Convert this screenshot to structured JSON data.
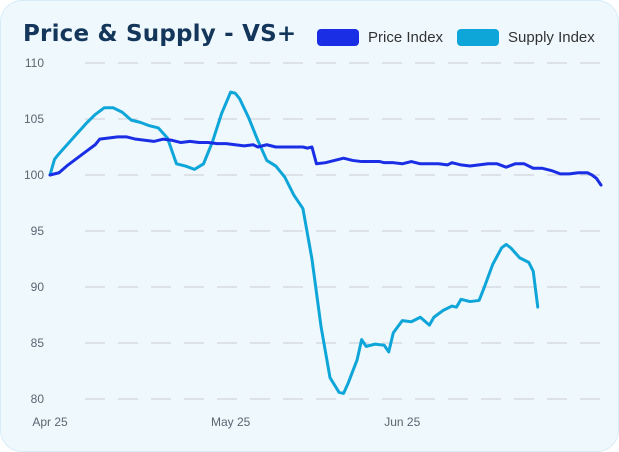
{
  "chart_data": {
    "type": "line",
    "title": "Price & Supply - VS+",
    "xlabel": "",
    "ylabel": "",
    "ylim": [
      80,
      110
    ],
    "y_ticks": [
      110,
      105,
      100,
      95,
      90,
      85,
      80
    ],
    "x_ticks": [
      "Apr 25",
      "May 25",
      "Jun 25"
    ],
    "grid": "horizontal dashed",
    "legend_position": "top-right",
    "colors": {
      "price": "#1a2ee6",
      "supply": "#0ea5d9",
      "grid": "#c9cdd2"
    },
    "series": [
      {
        "name": "Price Index",
        "color": "#1a2ee6",
        "points": [
          [
            0,
            100.0
          ],
          [
            2,
            100.2
          ],
          [
            4,
            100.9
          ],
          [
            6,
            101.5
          ],
          [
            8,
            102.1
          ],
          [
            10,
            102.7
          ],
          [
            11,
            103.2
          ],
          [
            13,
            103.3
          ],
          [
            15,
            103.4
          ],
          [
            17,
            103.4
          ],
          [
            19,
            103.2
          ],
          [
            21,
            103.1
          ],
          [
            23,
            103.0
          ],
          [
            25,
            103.2
          ],
          [
            27,
            103.1
          ],
          [
            29,
            102.9
          ],
          [
            31,
            103.0
          ],
          [
            33,
            102.9
          ],
          [
            35,
            102.9
          ],
          [
            37,
            102.8
          ],
          [
            39,
            102.8
          ],
          [
            41,
            102.7
          ],
          [
            43,
            102.6
          ],
          [
            45,
            102.7
          ],
          [
            46,
            102.5
          ],
          [
            48,
            102.7
          ],
          [
            50,
            102.5
          ],
          [
            52,
            102.5
          ],
          [
            54,
            102.5
          ],
          [
            56,
            102.5
          ],
          [
            57,
            102.4
          ],
          [
            58,
            102.5
          ],
          [
            59,
            101.0
          ],
          [
            61,
            101.1
          ],
          [
            63,
            101.3
          ],
          [
            65,
            101.5
          ],
          [
            67,
            101.3
          ],
          [
            69,
            101.2
          ],
          [
            71,
            101.2
          ],
          [
            73,
            101.2
          ],
          [
            74,
            101.1
          ],
          [
            76,
            101.1
          ],
          [
            78,
            101.0
          ],
          [
            80,
            101.2
          ],
          [
            82,
            101.0
          ],
          [
            84,
            101.0
          ],
          [
            86,
            101.0
          ],
          [
            88,
            100.9
          ],
          [
            89,
            101.1
          ],
          [
            91,
            100.9
          ],
          [
            93,
            100.8
          ],
          [
            95,
            100.9
          ],
          [
            97,
            101.0
          ],
          [
            99,
            101.0
          ],
          [
            101,
            100.7
          ],
          [
            103,
            101.0
          ],
          [
            105,
            101.0
          ],
          [
            107,
            100.6
          ],
          [
            109,
            100.6
          ],
          [
            111,
            100.4
          ],
          [
            113,
            100.1
          ],
          [
            115,
            100.1
          ],
          [
            117,
            100.2
          ],
          [
            119,
            100.2
          ],
          [
            120,
            100.0
          ],
          [
            121,
            99.7
          ],
          [
            122,
            99.1
          ]
        ]
      },
      {
        "name": "Supply Index",
        "color": "#0ea5d9",
        "points": [
          [
            0,
            100.0
          ],
          [
            1,
            101.4
          ],
          [
            2,
            101.9
          ],
          [
            4,
            102.8
          ],
          [
            6,
            103.7
          ],
          [
            8,
            104.6
          ],
          [
            10,
            105.4
          ],
          [
            12,
            106.0
          ],
          [
            14,
            106.0
          ],
          [
            16,
            105.6
          ],
          [
            18,
            104.9
          ],
          [
            20,
            104.7
          ],
          [
            22,
            104.4
          ],
          [
            24,
            104.2
          ],
          [
            26,
            103.3
          ],
          [
            28,
            101.0
          ],
          [
            30,
            100.8
          ],
          [
            32,
            100.5
          ],
          [
            34,
            101.0
          ],
          [
            36,
            103.0
          ],
          [
            38,
            105.5
          ],
          [
            40,
            107.4
          ],
          [
            41,
            107.3
          ],
          [
            42,
            106.8
          ],
          [
            44,
            105.1
          ],
          [
            46,
            103.1
          ],
          [
            48,
            101.3
          ],
          [
            50,
            100.8
          ],
          [
            52,
            99.8
          ],
          [
            54,
            98.2
          ],
          [
            56,
            97.0
          ],
          [
            58,
            92.5
          ],
          [
            60,
            86.5
          ],
          [
            62,
            81.9
          ],
          [
            64,
            80.6
          ],
          [
            65,
            80.5
          ],
          [
            66,
            81.4
          ],
          [
            68,
            83.5
          ],
          [
            69,
            85.3
          ],
          [
            70,
            84.7
          ],
          [
            72,
            84.9
          ],
          [
            74,
            84.8
          ],
          [
            75,
            84.2
          ],
          [
            76,
            85.9
          ],
          [
            78,
            87.0
          ],
          [
            80,
            86.9
          ],
          [
            82,
            87.3
          ],
          [
            84,
            86.6
          ],
          [
            85,
            87.3
          ],
          [
            87,
            87.9
          ],
          [
            89,
            88.3
          ],
          [
            90,
            88.2
          ],
          [
            91,
            88.9
          ],
          [
            93,
            88.7
          ],
          [
            95,
            88.8
          ],
          [
            96,
            89.8
          ],
          [
            98,
            92.0
          ],
          [
            100,
            93.5
          ],
          [
            101,
            93.8
          ],
          [
            102,
            93.5
          ],
          [
            104,
            92.6
          ],
          [
            106,
            92.2
          ],
          [
            107,
            91.4
          ],
          [
            108,
            88.2
          ]
        ]
      }
    ]
  }
}
